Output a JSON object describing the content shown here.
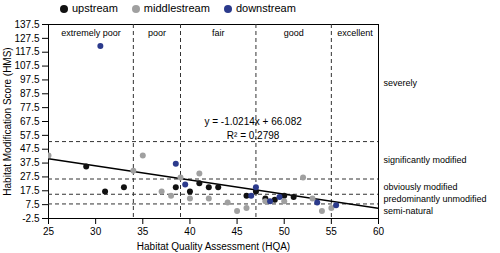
{
  "chart_data": {
    "type": "scatter",
    "x_label": "Habitat Quality Assessment (HQA)",
    "y_label": "Habitat Modification Score (HMS)",
    "xlim": [
      25,
      60
    ],
    "xticks": [
      25,
      30,
      35,
      40,
      45,
      50,
      55,
      60
    ],
    "ylim": [
      -2.5,
      137.5
    ],
    "yticks": [
      -2.5,
      7.5,
      17.5,
      27.5,
      37.5,
      47.5,
      57.5,
      67.5,
      77.5,
      87.5,
      97.5,
      107.5,
      117.5,
      127.5,
      137.5
    ],
    "legend": "top",
    "series": [
      {
        "name": "upstream",
        "color": "#111111",
        "marker": "circle",
        "x": [
          29,
          31,
          33,
          38.5,
          40,
          41,
          42,
          43,
          46,
          47,
          48,
          49,
          50,
          51
        ],
        "values": [
          35,
          17,
          20,
          20,
          17,
          23,
          20,
          20,
          14,
          17,
          12,
          11,
          14,
          13
        ]
      },
      {
        "name": "middlestream",
        "color": "#a0a0a0",
        "marker": "circle",
        "x": [
          25,
          34,
          35,
          37,
          38,
          39,
          40,
          41,
          42,
          44,
          45,
          46,
          48,
          50,
          52,
          53,
          54,
          55
        ],
        "values": [
          43,
          32,
          43,
          17,
          14,
          27,
          12,
          30,
          12,
          9,
          3,
          5,
          10,
          10,
          27,
          12,
          3,
          5
        ]
      },
      {
        "name": "downstream",
        "color": "#2b3a8c",
        "marker": "circle",
        "x": [
          30.5,
          38.5,
          39.5,
          46.5,
          47,
          48.5,
          49.5,
          53.5,
          55.5
        ],
        "values": [
          122,
          37,
          22,
          14,
          20,
          10,
          13,
          9,
          7
        ]
      }
    ],
    "trendline": {
      "slope": -1.0214,
      "intercept": 66.082,
      "color": "#000000",
      "label": "y = -1.0214x + 66.082",
      "r2_label": "R² = 0.2798"
    },
    "hqa_classes": {
      "boundaries": [
        34,
        39,
        47,
        55
      ],
      "labels": [
        "extremely poor",
        "poor",
        "fair",
        "good",
        "excellent"
      ]
    },
    "hms_classes": {
      "boundaries": [
        8,
        15,
        26,
        53
      ],
      "labels": [
        "semi-natural",
        "predominantly unmodified",
        "obviously modified",
        "significantly modified",
        "severely"
      ]
    }
  }
}
